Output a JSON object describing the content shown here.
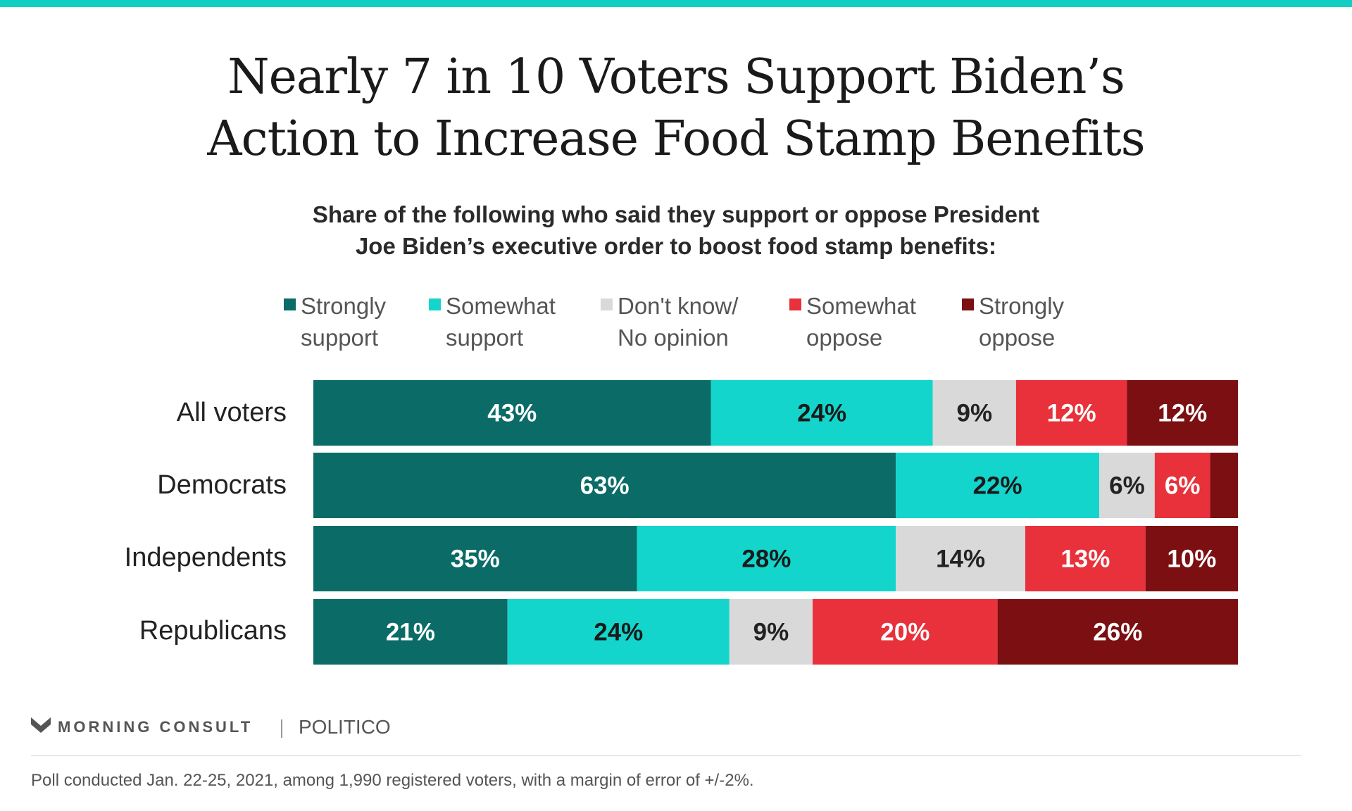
{
  "header": {
    "title_line1": "Nearly 7 in 10 Voters Support Biden’s",
    "title_line2": "Action to Increase Food Stamp Benefits",
    "subtitle_line1": "Share of the following who said they support or oppose President",
    "subtitle_line2": "Joe Biden’s executive order to boost food stamp benefits:"
  },
  "legend": [
    {
      "line1": "Strongly",
      "line2": "support",
      "color": "#0a6b67"
    },
    {
      "line1": "Somewhat",
      "line2": "support",
      "color": "#13d5cc"
    },
    {
      "line1": "Don't know/",
      "line2": "No opinion",
      "color": "#d9d9d9"
    },
    {
      "line1": "Somewhat",
      "line2": "oppose",
      "color": "#e8313a"
    },
    {
      "line1": "Strongly",
      "line2": "oppose",
      "color": "#7b0f12"
    }
  ],
  "chart_data": {
    "type": "bar",
    "orientation": "horizontal",
    "stacked": true,
    "unit": "%",
    "categories": [
      "All voters",
      "Democrats",
      "Independents",
      "Republicans"
    ],
    "series": [
      {
        "name": "Strongly support",
        "color": "#0a6b67",
        "values": [
          43,
          63,
          35,
          21
        ],
        "labels": [
          "43%",
          "63%",
          "35%",
          "21%"
        ],
        "label_color": "#ffffff"
      },
      {
        "name": "Somewhat support",
        "color": "#13d5cc",
        "values": [
          24,
          22,
          28,
          24
        ],
        "labels": [
          "24%",
          "22%",
          "28%",
          "24%"
        ],
        "label_color": "#1a1a1a"
      },
      {
        "name": "Don't know/No opinion",
        "color": "#d9d9d9",
        "values": [
          9,
          6,
          14,
          9
        ],
        "labels": [
          "9%",
          "6%",
          "14%",
          "9%"
        ],
        "label_color": "#222222"
      },
      {
        "name": "Somewhat oppose",
        "color": "#e8313a",
        "values": [
          12,
          6,
          13,
          20
        ],
        "labels": [
          "12%",
          "6%",
          "13%",
          "20%"
        ],
        "label_color": "#ffffff"
      },
      {
        "name": "Strongly oppose",
        "color": "#7b0f12",
        "values": [
          12,
          3,
          10,
          26
        ],
        "labels": [
          "12%",
          "",
          "10%",
          "26%"
        ],
        "label_color": "#ffffff"
      }
    ]
  },
  "footer": {
    "brand": "MORNING CONSULT",
    "partner": "POLITICO",
    "note": "Poll conducted Jan. 22-25, 2021, among 1,990 registered voters, with a margin of error of +/-2%."
  }
}
